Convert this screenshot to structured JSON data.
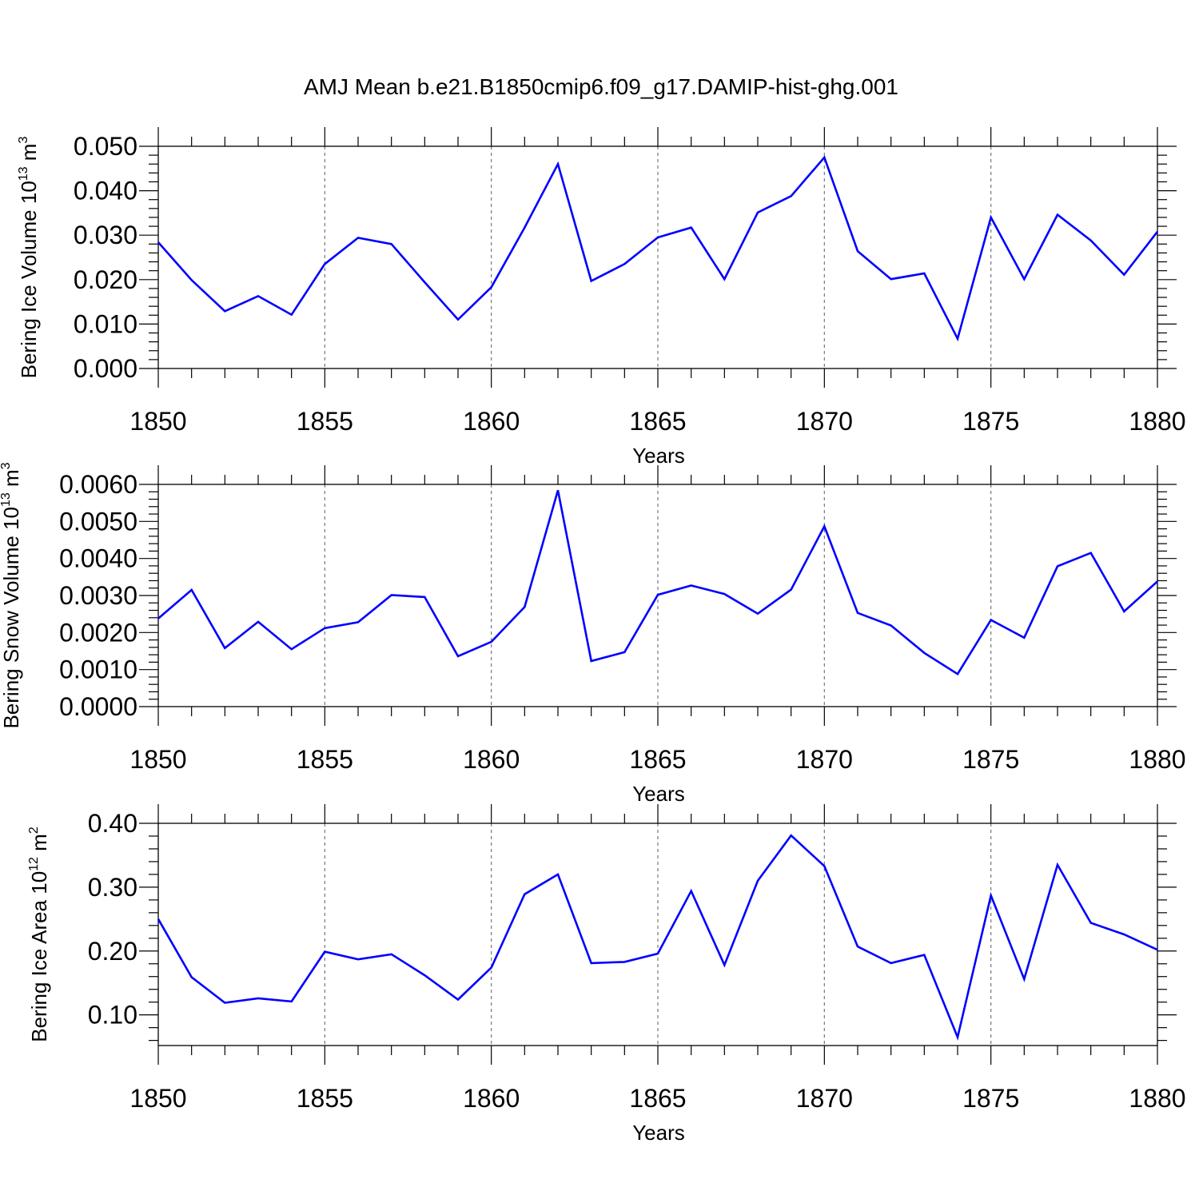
{
  "figure_title": "AMJ Mean b.e21.B1850cmip6.f09_g17.DAMIP-hist-ghg.001",
  "chart_data": [
    {
      "type": "line",
      "title": "AMJ Mean b.e21.B1850cmip6.f09_g17.DAMIP-hist-ghg.001",
      "xlabel": "Years",
      "ylabel_main": "Bering Ice Volume 10",
      "ylabel_exp": "13",
      "ylabel_unit": " m",
      "ylabel_unit_exp": "3",
      "xlim": [
        1850,
        1880
      ],
      "ylim": [
        0.0,
        0.05
      ],
      "x_ticks": [
        1850,
        1855,
        1860,
        1865,
        1870,
        1875,
        1880
      ],
      "x_tick_labels": [
        "1850",
        "1855",
        "1860",
        "1865",
        "1870",
        "1875",
        "1880"
      ],
      "y_ticks": [
        0.0,
        0.01,
        0.02,
        0.03,
        0.04,
        0.05
      ],
      "y_tick_labels": [
        "0.000",
        "0.010",
        "0.020",
        "0.030",
        "0.040",
        "0.050"
      ],
      "y_minor_step": 0.002,
      "grid": "dashed vertical at major x ticks",
      "line_color": "#0000ff",
      "series": [
        {
          "name": "Bering Ice Volume",
          "x": [
            1850,
            1851,
            1852,
            1853,
            1854,
            1855,
            1856,
            1857,
            1858,
            1859,
            1860,
            1861,
            1862,
            1863,
            1864,
            1865,
            1866,
            1867,
            1868,
            1869,
            1870,
            1871,
            1872,
            1873,
            1874,
            1875,
            1876,
            1877,
            1878,
            1879,
            1880
          ],
          "values": [
            0.0284,
            0.0199,
            0.0129,
            0.0163,
            0.0121,
            0.0235,
            0.0294,
            0.028,
            0.0194,
            0.011,
            0.0183,
            0.0317,
            0.046,
            0.0197,
            0.0235,
            0.0295,
            0.0317,
            0.0201,
            0.0351,
            0.0388,
            0.0475,
            0.0264,
            0.0201,
            0.0214,
            0.0067,
            0.034,
            0.0201,
            0.0346,
            0.0288,
            0.0211,
            0.0308
          ]
        }
      ]
    },
    {
      "type": "line",
      "xlabel": "Years",
      "ylabel_main": "Bering Snow Volume 10",
      "ylabel_exp": "13",
      "ylabel_unit": " m",
      "ylabel_unit_exp": "3",
      "xlim": [
        1850,
        1880
      ],
      "ylim": [
        0.0,
        0.006
      ],
      "x_ticks": [
        1850,
        1855,
        1860,
        1865,
        1870,
        1875,
        1880
      ],
      "x_tick_labels": [
        "1850",
        "1855",
        "1860",
        "1865",
        "1870",
        "1875",
        "1880"
      ],
      "y_ticks": [
        0.0,
        0.001,
        0.002,
        0.003,
        0.004,
        0.005,
        0.006
      ],
      "y_tick_labels": [
        "0.0000",
        "0.0010",
        "0.0020",
        "0.0030",
        "0.0040",
        "0.0050",
        "0.0060"
      ],
      "y_minor_step": 0.0002,
      "grid": "dashed vertical at major x ticks",
      "line_color": "#0000ff",
      "series": [
        {
          "name": "Bering Snow Volume",
          "x": [
            1850,
            1851,
            1852,
            1853,
            1854,
            1855,
            1856,
            1857,
            1858,
            1859,
            1860,
            1861,
            1862,
            1863,
            1864,
            1865,
            1866,
            1867,
            1868,
            1869,
            1870,
            1871,
            1872,
            1873,
            1874,
            1875,
            1876,
            1877,
            1878,
            1879,
            1880
          ],
          "values": [
            0.00238,
            0.00315,
            0.00158,
            0.00229,
            0.00155,
            0.00212,
            0.00228,
            0.00301,
            0.00296,
            0.00136,
            0.00175,
            0.00269,
            0.00584,
            0.00123,
            0.00147,
            0.00302,
            0.00327,
            0.00304,
            0.00251,
            0.00316,
            0.00487,
            0.00253,
            0.00219,
            0.00145,
            0.00088,
            0.00234,
            0.00186,
            0.00379,
            0.00415,
            0.00257,
            0.00338
          ]
        }
      ]
    },
    {
      "type": "line",
      "xlabel": "Years",
      "ylabel_main": "Bering Ice Area 10",
      "ylabel_exp": "12",
      "ylabel_unit": " m",
      "ylabel_unit_exp": "2",
      "xlim": [
        1850,
        1880
      ],
      "ylim": [
        0.052,
        0.4
      ],
      "x_ticks": [
        1850,
        1855,
        1860,
        1865,
        1870,
        1875,
        1880
      ],
      "x_tick_labels": [
        "1850",
        "1855",
        "1860",
        "1865",
        "1870",
        "1875",
        "1880"
      ],
      "y_ticks": [
        0.1,
        0.2,
        0.3,
        0.4
      ],
      "y_tick_labels": [
        "0.10",
        "0.20",
        "0.30",
        "0.40"
      ],
      "y_minor_step": 0.02,
      "grid": "dashed vertical at major x ticks",
      "line_color": "#0000ff",
      "series": [
        {
          "name": "Bering Ice Area",
          "x": [
            1850,
            1851,
            1852,
            1853,
            1854,
            1855,
            1856,
            1857,
            1858,
            1859,
            1860,
            1861,
            1862,
            1863,
            1864,
            1865,
            1866,
            1867,
            1868,
            1869,
            1870,
            1871,
            1872,
            1873,
            1874,
            1875,
            1876,
            1877,
            1878,
            1879,
            1880
          ],
          "values": [
            0.25,
            0.159,
            0.119,
            0.126,
            0.121,
            0.199,
            0.187,
            0.195,
            0.162,
            0.124,
            0.174,
            0.289,
            0.32,
            0.181,
            0.183,
            0.196,
            0.294,
            0.178,
            0.31,
            0.381,
            0.333,
            0.207,
            0.181,
            0.194,
            0.065,
            0.287,
            0.156,
            0.335,
            0.244,
            0.226,
            0.202
          ]
        }
      ]
    }
  ]
}
